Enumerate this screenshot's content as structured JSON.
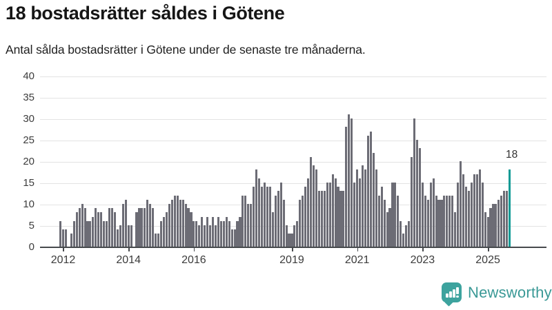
{
  "header": {
    "title": "18 bostadsrätter såldes i Götene",
    "subtitle": "Antal sålda bostadsrätter i Götene under de senaste tre månaderna."
  },
  "annotation": {
    "label": "18"
  },
  "branding": {
    "name": "Newsworthy",
    "icon": "newsworthy-bar-chart-bubble",
    "icon_color": "#3da39e",
    "text_color": "#3a9996"
  },
  "colors": {
    "bar": "#6c6c75",
    "bar_highlight": "#0d9a94",
    "gridline": "#e3e3e3",
    "axis_line": "#46494c",
    "axis_text": "#3c3c3c",
    "title_text": "#161616"
  },
  "chart_data": {
    "type": "bar",
    "title": "18 bostadsrätter såldes i Götene",
    "subtitle": "Antal sålda bostadsrätter i Götene under de senaste tre månaderna.",
    "unit": "sålda bostadsrätter per 3 månader (rullande)",
    "start_month": "2011-12",
    "end_month": "2025-09",
    "ylim": [
      0,
      40
    ],
    "y_ticks": [
      0,
      5,
      10,
      15,
      20,
      25,
      30,
      35,
      40
    ],
    "x_tick_labels": [
      2012,
      2014,
      2016,
      2019,
      2021,
      2023,
      2025
    ],
    "grid": true,
    "highlight_last": true,
    "last_value_label": "18",
    "values": [
      6,
      4,
      4,
      0,
      3,
      6,
      8,
      9,
      10,
      9,
      6,
      6,
      7,
      9,
      8,
      8,
      6,
      6,
      9,
      9,
      8,
      4,
      5,
      10,
      11,
      5,
      5,
      0,
      8,
      9,
      9,
      9,
      11,
      10,
      9,
      3,
      3,
      6,
      7,
      8,
      10,
      11,
      12,
      12,
      11,
      11,
      10,
      9,
      8,
      6,
      6,
      5,
      7,
      5,
      7,
      5,
      7,
      5,
      7,
      6,
      6,
      7,
      6,
      4,
      4,
      6,
      7,
      12,
      12,
      10,
      10,
      14,
      18,
      16,
      14,
      15,
      14,
      14,
      8,
      12,
      13,
      15,
      11,
      5,
      3,
      3,
      5,
      6,
      11,
      12,
      14,
      16,
      21,
      19,
      18,
      13,
      13,
      13,
      15,
      15,
      17,
      16,
      14,
      13,
      13,
      28,
      31,
      30,
      15,
      18,
      16,
      19,
      18,
      26,
      27,
      22,
      18,
      12,
      14,
      11,
      8,
      9,
      15,
      15,
      12,
      6,
      3,
      5,
      6,
      21,
      30,
      25,
      23,
      15,
      12,
      11,
      15,
      16,
      12,
      11,
      11,
      12,
      12,
      12,
      12,
      8,
      15,
      20,
      17,
      14,
      13,
      15,
      17,
      17,
      18,
      15,
      8,
      7,
      9,
      10,
      10,
      11,
      12,
      13,
      13,
      18
    ]
  }
}
